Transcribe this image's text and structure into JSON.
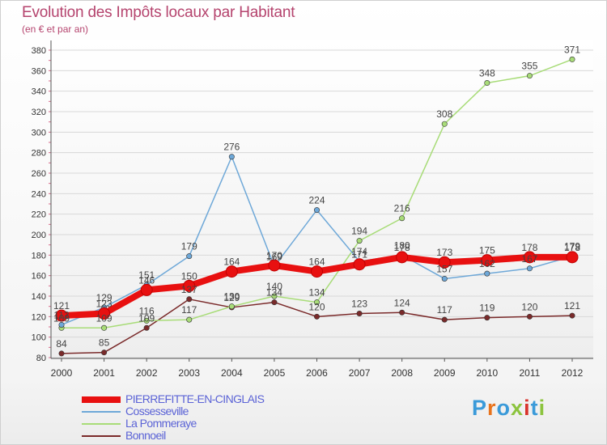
{
  "header": {
    "title": "Evolution des Impôts locaux par Habitant",
    "subtitle": "(en € et par an)"
  },
  "brand": {
    "logo_text": "Proxiti",
    "letter_colors": [
      "#3a9ad9",
      "#e8731c",
      "#3a9ad9",
      "#8cc43e",
      "#d9332c",
      "#3a9ad9",
      "#8cc43e"
    ]
  },
  "chart_data": {
    "type": "line",
    "x": [
      "2000",
      "2001",
      "2002",
      "2003",
      "2004",
      "2005",
      "2006",
      "2007",
      "2008",
      "2009",
      "2010",
      "2011",
      "2012"
    ],
    "xlim": [
      2000,
      2012
    ],
    "ylim": [
      80,
      380
    ],
    "yticks": [
      80,
      100,
      120,
      140,
      160,
      180,
      200,
      220,
      240,
      260,
      280,
      300,
      320,
      340,
      360,
      380
    ],
    "grid": "horizontal",
    "legend_position": "bottom-left",
    "series": [
      {
        "name": "PIERREFITTE-EN-CINGLAIS",
        "color": "#e81010",
        "width": 8,
        "values": [
          121,
          123,
          146,
          150,
          164,
          170,
          164,
          171,
          178,
          173,
          175,
          178,
          178
        ],
        "labels": [
          "121",
          "123",
          "146",
          "150",
          "164",
          "170",
          "164",
          "171",
          "178",
          "173",
          "175",
          "178",
          "178"
        ]
      },
      {
        "name": "Cossesseville",
        "color": "#6ea8d8",
        "width": 1.5,
        "values": [
          112,
          129,
          151,
          179,
          276,
          169,
          224,
          174,
          180,
          157,
          162,
          167,
          179
        ],
        "labels": [
          "112",
          "129",
          "151",
          "179",
          "276",
          "169",
          "224",
          "174",
          "180",
          "157",
          "162",
          "167",
          "179"
        ]
      },
      {
        "name": "La Pommeraye",
        "color": "#a8dc78",
        "width": 1.5,
        "values": [
          109,
          109,
          116,
          117,
          130,
          140,
          134,
          194,
          216,
          308,
          348,
          355,
          371
        ],
        "labels": [
          "109",
          "109",
          "116",
          "117",
          "130",
          "140",
          "134",
          "194",
          "216",
          "308",
          "348",
          "355",
          "371"
        ]
      },
      {
        "name": "Bonnoeil",
        "color": "#7a2a2a",
        "width": 1.5,
        "values": [
          84,
          85,
          109,
          137,
          129,
          134,
          120,
          123,
          124,
          117,
          119,
          120,
          121
        ],
        "labels": [
          "84",
          "85",
          "109",
          "137",
          "129",
          "134",
          "120",
          "123",
          "124",
          "117",
          "119",
          "120",
          "121"
        ]
      }
    ]
  }
}
